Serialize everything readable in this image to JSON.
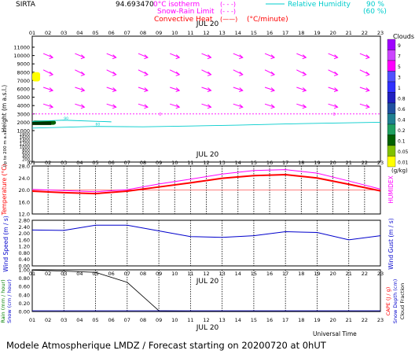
{
  "header": {
    "station": "SIRTA",
    "code": "94.693470",
    "iso_legend": "0°C isotherm",
    "snow_legend": "Snow-Rain Limit",
    "conv_legend": "Convective Heat",
    "conv_unit": "(°C/minute)",
    "rh_legend": "Relative Humidity",
    "rh_90": "90 %",
    "rh_60": "(60 %)",
    "dash_symbol": "(- - -)",
    "line_symbol": "(——)"
  },
  "footer": {
    "text": "Modele Atmospherique LMDZ / Forecast starting on 20200720 at 0hUT",
    "universal_time": "Universal Time"
  },
  "date_label": "JUL 20",
  "hours": [
    "01",
    "02",
    "03",
    "04",
    "05",
    "06",
    "07",
    "08",
    "09",
    "10",
    "11",
    "12",
    "13",
    "14",
    "15",
    "16",
    "17",
    "18",
    "19",
    "20",
    "21",
    "22",
    "23"
  ],
  "colors": {
    "wind": "#ff00ff",
    "temperature": "#ff0000",
    "humidex": "#ff00ff",
    "wind_speed": "#0000cc",
    "rain": "#000000",
    "isotherm": "#ff00ff",
    "humidity": "#00cccc",
    "clouds_low": "#ffff00",
    "clouds_high": "#a000ff"
  },
  "chart_data": [
    {
      "type": "heatmap",
      "title": "Clouds",
      "ylabel": "Height (m a.s.l.)",
      "ylabel_low": "Up to 200 m a.s.l.",
      "y_ticks_upper": [
        "11000",
        "10000",
        "9000",
        "8000",
        "7000",
        "6000",
        "5000",
        "4000",
        "3000",
        "2000",
        "1000"
      ],
      "y_ticks_lower": [
        "1800",
        "1600",
        "1400",
        "1200",
        "1000",
        "800",
        "600",
        "400",
        "200",
        "0"
      ],
      "colorbar_labels": [
        "9",
        "7",
        "5",
        "3",
        "1",
        "0.8",
        "0.6",
        "0.4",
        "0.2",
        "0.1",
        "0.05",
        "0.01"
      ],
      "colorbar_colors": [
        "#a000ff",
        "#cc44ff",
        "#ff00ff",
        "#5050ff",
        "#3030ff",
        "#2020c0",
        "#2050a0",
        "#208090",
        "#20a060",
        "#006000",
        "#80c000",
        "#ffff00"
      ],
      "colorbar_unit": "(g/kg)",
      "isotherm_m": 3000,
      "isotherm_label": "0",
      "humidity_contours": [
        {
          "name": "60",
          "x": [
            1,
            5,
            8,
            11,
            14,
            17,
            20,
            23
          ],
          "y": [
            1300,
            1500,
            1450,
            1550,
            1650,
            1800,
            1900,
            2000
          ]
        },
        {
          "name": "90",
          "x": [
            1,
            3,
            6
          ],
          "y": [
            2100,
            2250,
            2050
          ]
        }
      ],
      "cloud_patches": [
        {
          "x": [
            1,
            2.5
          ],
          "y_m": [
            1700,
            2200
          ],
          "value": 0.1
        },
        {
          "x": [
            1,
            1.5
          ],
          "y_m": [
            6900,
            8000
          ],
          "value": 0.01
        }
      ]
    },
    {
      "type": "line",
      "ylabel": "Temperature (°C)",
      "y2label": "HUMIDEX",
      "x": [
        1,
        3,
        5,
        7,
        9,
        11,
        13,
        15,
        17,
        19,
        21,
        23
      ],
      "ylim": [
        12,
        28
      ],
      "y_ticks": [
        "28.0",
        "24.0",
        "20.0",
        "16.0",
        "12.0"
      ],
      "series": [
        {
          "name": "Temperature",
          "values": [
            19.6,
            19.1,
            18.8,
            19.6,
            21.0,
            22.4,
            23.9,
            24.8,
            25.1,
            24.0,
            21.9,
            19.7
          ]
        },
        {
          "name": "HUMIDEX",
          "values": [
            20.2,
            19.8,
            19.4,
            20.1,
            22.0,
            23.6,
            25.3,
            26.5,
            26.8,
            25.6,
            23.0,
            20.3
          ]
        }
      ]
    },
    {
      "type": "line",
      "ylabel": "Wind Speed (m / s)",
      "y2label": "Wind Gust (m / s)",
      "x": [
        1,
        3,
        5,
        7,
        9,
        11,
        13,
        15,
        17,
        19,
        21,
        23
      ],
      "ylim": [
        0,
        2.8
      ],
      "y_ticks": [
        "2.80",
        "2.40",
        "2.00",
        "1.60",
        "1.20",
        "0.80",
        "0.40",
        "0.00"
      ],
      "series": [
        {
          "name": "Wind Speed",
          "values": [
            2.2,
            2.18,
            2.5,
            2.5,
            2.15,
            1.8,
            1.75,
            1.85,
            2.1,
            2.05,
            1.6,
            1.85
          ]
        }
      ]
    },
    {
      "type": "line",
      "ylabel": "Rain (mm / hour)",
      "ylabel2": "Snow (cm / hour)",
      "y2label": "CAPE (J / g)",
      "y2label2": "Snow Depth (cm)",
      "y2label3": "Cloud Fraction",
      "xlabel": "Universal Time",
      "x": [
        1,
        3,
        5,
        7,
        9,
        11,
        13,
        15,
        17,
        19,
        21,
        23
      ],
      "ylim": [
        0,
        1.0
      ],
      "y_ticks": [
        "1.00",
        "0.80",
        "0.60",
        "0.40",
        "0.20",
        "0.00"
      ],
      "series": [
        {
          "name": "Rain",
          "values": [
            0.99,
            0.97,
            0.94,
            0.7,
            0.02,
            0.01,
            0.01,
            0.01,
            0.01,
            0.01,
            0.01,
            0.01
          ]
        }
      ]
    }
  ]
}
